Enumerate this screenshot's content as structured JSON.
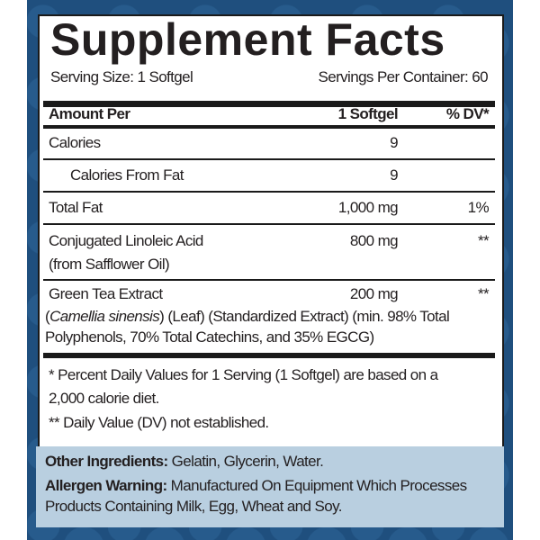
{
  "title": "Supplement Facts",
  "serving_size": "Serving Size: 1 Softgel",
  "servings_per_container": "Servings Per Container: 60",
  "header": {
    "amount_per": "Amount Per",
    "serving": "1 Softgel",
    "dv": "% DV*"
  },
  "rows": [
    {
      "name": "Calories",
      "amount": "9",
      "dv": ""
    },
    {
      "name": "Calories From Fat",
      "amount": "9",
      "dv": ""
    },
    {
      "name": "Total Fat",
      "amount": "1,000 mg",
      "dv": "1%"
    },
    {
      "name": "Conjugated Linoleic Acid",
      "sub": "(from Safflower Oil)",
      "amount": "800 mg",
      "dv": "**"
    },
    {
      "name": "Green Tea Extract",
      "sub_italic": "Camellia sinensis",
      "sub1": ") (Leaf) (Standardized Extract) (min. 98% Total",
      "sub2": "Polyphenols, 70% Total Catechins, and 35% EGCG)",
      "amount": "200 mg",
      "dv": "**"
    }
  ],
  "footnotes": {
    "line1": "* Percent Daily Values for 1 Serving (1 Softgel) are based on a",
    "line2": "2,000 calorie diet.",
    "line3": "** Daily Value (DV) not established."
  },
  "other_ingredients": {
    "label": "Other Ingredients:",
    "text": " Gelatin, Glycerin, Water."
  },
  "allergen": {
    "label": "Allergen Warning:",
    "text": " Manufactured On Equipment Which Processes",
    "text2": "Products Containing Milk, Egg, Wheat and Soy."
  },
  "colors": {
    "background": "#1f4f7e",
    "note_panel": "#b9cfe0",
    "text": "#231f20"
  }
}
